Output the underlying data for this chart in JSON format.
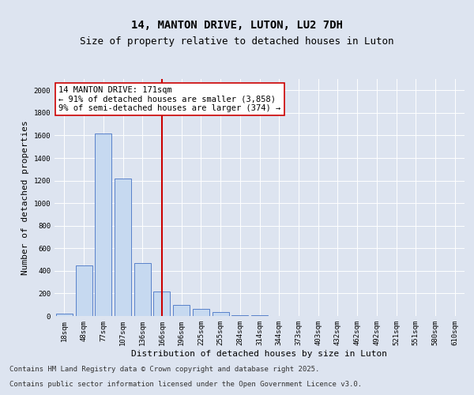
{
  "title": "14, MANTON DRIVE, LUTON, LU2 7DH",
  "subtitle": "Size of property relative to detached houses in Luton",
  "xlabel": "Distribution of detached houses by size in Luton",
  "ylabel": "Number of detached properties",
  "categories": [
    "18sqm",
    "48sqm",
    "77sqm",
    "107sqm",
    "136sqm",
    "166sqm",
    "196sqm",
    "225sqm",
    "255sqm",
    "284sqm",
    "314sqm",
    "344sqm",
    "373sqm",
    "403sqm",
    "432sqm",
    "462sqm",
    "492sqm",
    "521sqm",
    "551sqm",
    "580sqm",
    "610sqm"
  ],
  "values": [
    20,
    450,
    1620,
    1220,
    470,
    220,
    100,
    60,
    35,
    10,
    5,
    2,
    1,
    0,
    0,
    0,
    0,
    0,
    0,
    0,
    0
  ],
  "bar_color": "#c6d9f0",
  "bar_edge_color": "#4472c4",
  "vline_x_index": 5,
  "vline_color": "#cc0000",
  "annotation_text_line1": "14 MANTON DRIVE: 171sqm",
  "annotation_text_line2": "← 91% of detached houses are smaller (3,858)",
  "annotation_text_line3": "9% of semi-detached houses are larger (374) →",
  "annotation_box_color": "white",
  "annotation_box_edge": "#cc0000",
  "ylim": [
    0,
    2100
  ],
  "yticks": [
    0,
    200,
    400,
    600,
    800,
    1000,
    1200,
    1400,
    1600,
    1800,
    2000
  ],
  "background_color": "#dde4f0",
  "plot_bg_color": "#dde4f0",
  "footer_line1": "Contains HM Land Registry data © Crown copyright and database right 2025.",
  "footer_line2": "Contains public sector information licensed under the Open Government Licence v3.0.",
  "title_fontsize": 10,
  "subtitle_fontsize": 9,
  "axis_label_fontsize": 8,
  "tick_fontsize": 6.5,
  "annotation_fontsize": 7.5,
  "footer_fontsize": 6.5
}
